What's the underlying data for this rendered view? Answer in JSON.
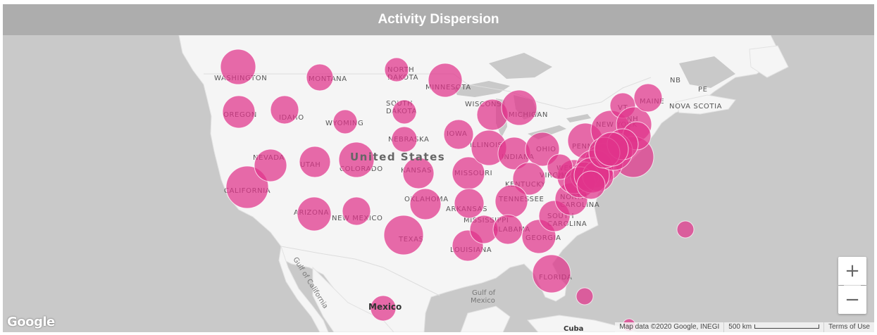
{
  "title": "Activity Dispersion",
  "colors": {
    "bubble": "#e0338a",
    "title_bar": "#adadad",
    "land": "#f5f5f5",
    "water": "#c9c9c9"
  },
  "map": {
    "country_label": "United States",
    "other_labels": [
      "Mexico",
      "Cuba",
      "Gulf of\nMexico",
      "NB",
      "PE",
      "NOVA SCOTIA"
    ],
    "labels": {
      "mexico": "Mexico",
      "cuba": "Cuba",
      "gulf": "Gulf of",
      "gulf2": "Mexico",
      "nb": "NB",
      "pe": "PE",
      "nova_scotia": "NOVA SCOTIA",
      "gulf_california": "Gulf of California"
    },
    "states": [
      "WASHINGTON",
      "OREGON",
      "CALIFORNIA",
      "NEVADA",
      "IDAHO",
      "MONTANA",
      "WYOMING",
      "UTAH",
      "ARIZONA",
      "COLORADO",
      "NEW MEXICO",
      "NORTH DAKOTA",
      "SOUTH DAKOTA",
      "NEBRASKA",
      "KANSAS",
      "OKLAHOMA",
      "TEXAS",
      "MINNESOTA",
      "IOWA",
      "MISSOURI",
      "ARKANSAS",
      "LOUISIANA",
      "WISCONSIN",
      "ILLINOIS",
      "MICHIGAN",
      "INDIANA",
      "OHIO",
      "KENTUCKY",
      "TENNESSEE",
      "MISSISSIPPI",
      "ALABAMA",
      "GEORGIA",
      "FLORIDA",
      "SOUTH CAROLINA",
      "NORTH CAROLINA",
      "VIRGINIA",
      "WEST VIRGINIA",
      "PENNSYLVANIA",
      "NEW YORK",
      "VERMONT",
      "NEW HAMPSHIRE",
      "MAINE"
    ],
    "controls": {
      "zoom_in": "+",
      "zoom_out": "−"
    },
    "google_logo": "Google",
    "attribution": {
      "map_data": "Map data ©2020 Google, INEGI",
      "scale": "500 km",
      "terms": "Terms of Use"
    }
  }
}
